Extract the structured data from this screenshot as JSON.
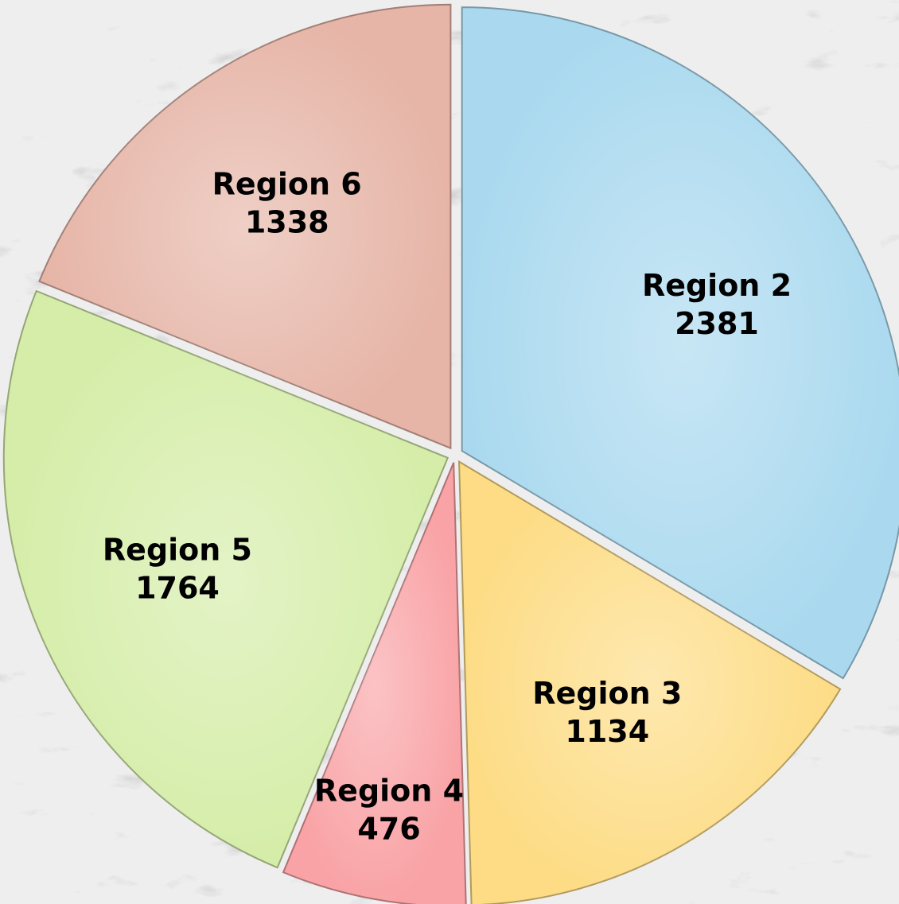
{
  "chart_data": {
    "type": "pie",
    "categories": [
      "Region 2",
      "Region 3",
      "Region 4",
      "Region 5",
      "Region 6"
    ],
    "values": [
      2381,
      1134,
      476,
      1764,
      1338
    ],
    "colors": [
      "#aad9ef",
      "#fddc85",
      "#f9a3a6",
      "#d5eda8",
      "#e6b5a7"
    ],
    "start_angle": 0,
    "direction": "clockwise",
    "exploded": true
  }
}
